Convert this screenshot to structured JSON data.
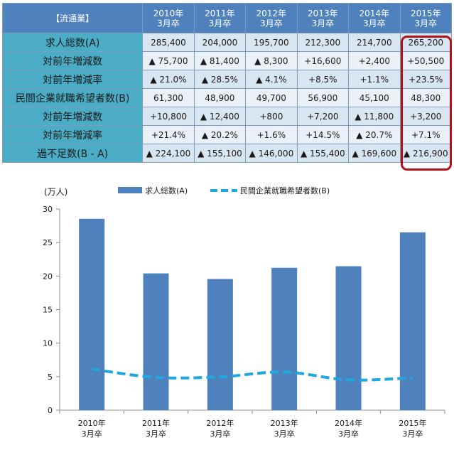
{
  "table": {
    "corner_label": "【流通業】",
    "columns": [
      {
        "year": "2010年",
        "grad": "3月卒"
      },
      {
        "year": "2011年",
        "grad": "3月卒"
      },
      {
        "year": "2012年",
        "grad": "3月卒"
      },
      {
        "year": "2013年",
        "grad": "3月卒"
      },
      {
        "year": "2014年",
        "grad": "3月卒"
      },
      {
        "year": "2015年",
        "grad": "3月卒"
      }
    ],
    "rows": [
      {
        "label": "求人総数(A)",
        "cells": [
          "285,400",
          "204,000",
          "195,700",
          "212,300",
          "214,700",
          "265,200"
        ]
      },
      {
        "label": "対前年増減数",
        "cells": [
          "▲ 75,700",
          "▲ 81,400",
          "▲ 8,300",
          "+16,600",
          "+2,400",
          "+50,500"
        ]
      },
      {
        "label": "対前年増減率",
        "cells": [
          "▲ 21.0%",
          "▲ 28.5%",
          "▲ 4.1%",
          "+8.5%",
          "+1.1%",
          "+23.5%"
        ]
      },
      {
        "label": "民間企業就職希望者数(B)",
        "cells": [
          "61,300",
          "48,900",
          "49,700",
          "56,900",
          "45,100",
          "48,300"
        ]
      },
      {
        "label": "対前年増減数",
        "cells": [
          "+10,800",
          "▲ 12,400",
          "+800",
          "+7,200",
          "▲ 11,800",
          "+3,200"
        ]
      },
      {
        "label": "対前年増減率",
        "cells": [
          "+21.4%",
          "▲ 20.2%",
          "+1.6%",
          "+14.5%",
          "▲ 20.7%",
          "+7.1%"
        ]
      },
      {
        "label": "過不足数(B - A)",
        "cells": [
          "▲ 224,100",
          "▲ 155,100",
          "▲ 146,000",
          "▲ 155,400",
          "▲ 169,600",
          "▲ 216,900"
        ]
      }
    ]
  },
  "chart_data": {
    "type": "bar",
    "ylabel": "(万人)",
    "ylim": [
      0,
      30
    ],
    "yticks": [
      0,
      5,
      10,
      15,
      20,
      25,
      30
    ],
    "grid": false,
    "legend_position": "top",
    "categories": [
      {
        "year": "2010年",
        "grad": "3月卒"
      },
      {
        "year": "2011年",
        "grad": "3月卒"
      },
      {
        "year": "2012年",
        "grad": "3月卒"
      },
      {
        "year": "2013年",
        "grad": "3月卒"
      },
      {
        "year": "2014年",
        "grad": "3月卒"
      },
      {
        "year": "2015年",
        "grad": "3月卒"
      }
    ],
    "series": [
      {
        "name": "求人総数(A)",
        "type": "bar",
        "color": "#4f81bd",
        "values": [
          28.54,
          20.4,
          19.57,
          21.23,
          21.47,
          26.52
        ]
      },
      {
        "name": "民間企業就職希望者数(B)",
        "type": "line",
        "style": "dashed",
        "color": "#1fa8e0",
        "values": [
          6.13,
          4.89,
          4.97,
          5.69,
          4.51,
          4.83
        ]
      }
    ]
  },
  "colors": {
    "header_bg": "#4f81bd",
    "label_bg": "#4bacc6",
    "highlight_border": "#b0121b"
  }
}
